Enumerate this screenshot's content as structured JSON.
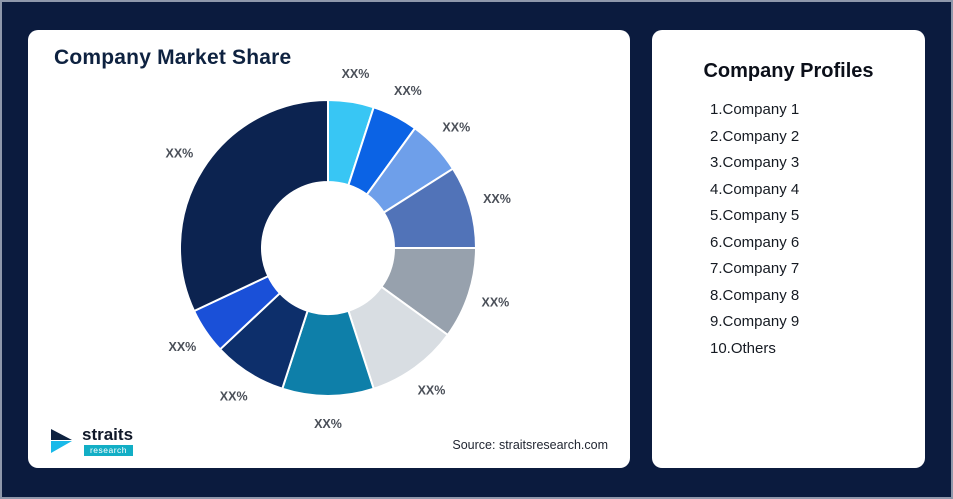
{
  "page": {
    "background_color": "#0B1B3E"
  },
  "left_card": {
    "title": "Company Market Share",
    "source": "Source: straitsresearch.com",
    "logo": {
      "name": "straits",
      "sub": "research"
    }
  },
  "profiles": {
    "title": "Company Profiles",
    "items": [
      "1.Company 1",
      "2.Company 2",
      "3.Company 3",
      "4.Company 4",
      "5.Company 5",
      "6.Company 6",
      "7.Company 7",
      "8.Company 8",
      "9.Company 9",
      "10.Others"
    ]
  },
  "chart_data": {
    "type": "pie",
    "subtype": "donut",
    "title": "Company Market Share",
    "labels": [
      "XX%",
      "XX%",
      "XX%",
      "XX%",
      "XX%",
      "XX%",
      "XX%",
      "XX%",
      "XX%",
      "XX%"
    ],
    "values": [
      5,
      5,
      6,
      9,
      10,
      10,
      10,
      8,
      5,
      32
    ],
    "colors": [
      "#38C6F4",
      "#0B63E5",
      "#6E9FEA",
      "#5173B8",
      "#97A1AD",
      "#D8DDE2",
      "#0E7FA9",
      "#0D2F6B",
      "#1A50D8",
      "#0C2350"
    ],
    "start_angle_deg": -90,
    "direction": "clockwise",
    "inner_radius_ratio": 0.45,
    "legend": "none",
    "value_note": "displayed labels are placeholder XX%; numeric values estimated from arc sizes"
  }
}
